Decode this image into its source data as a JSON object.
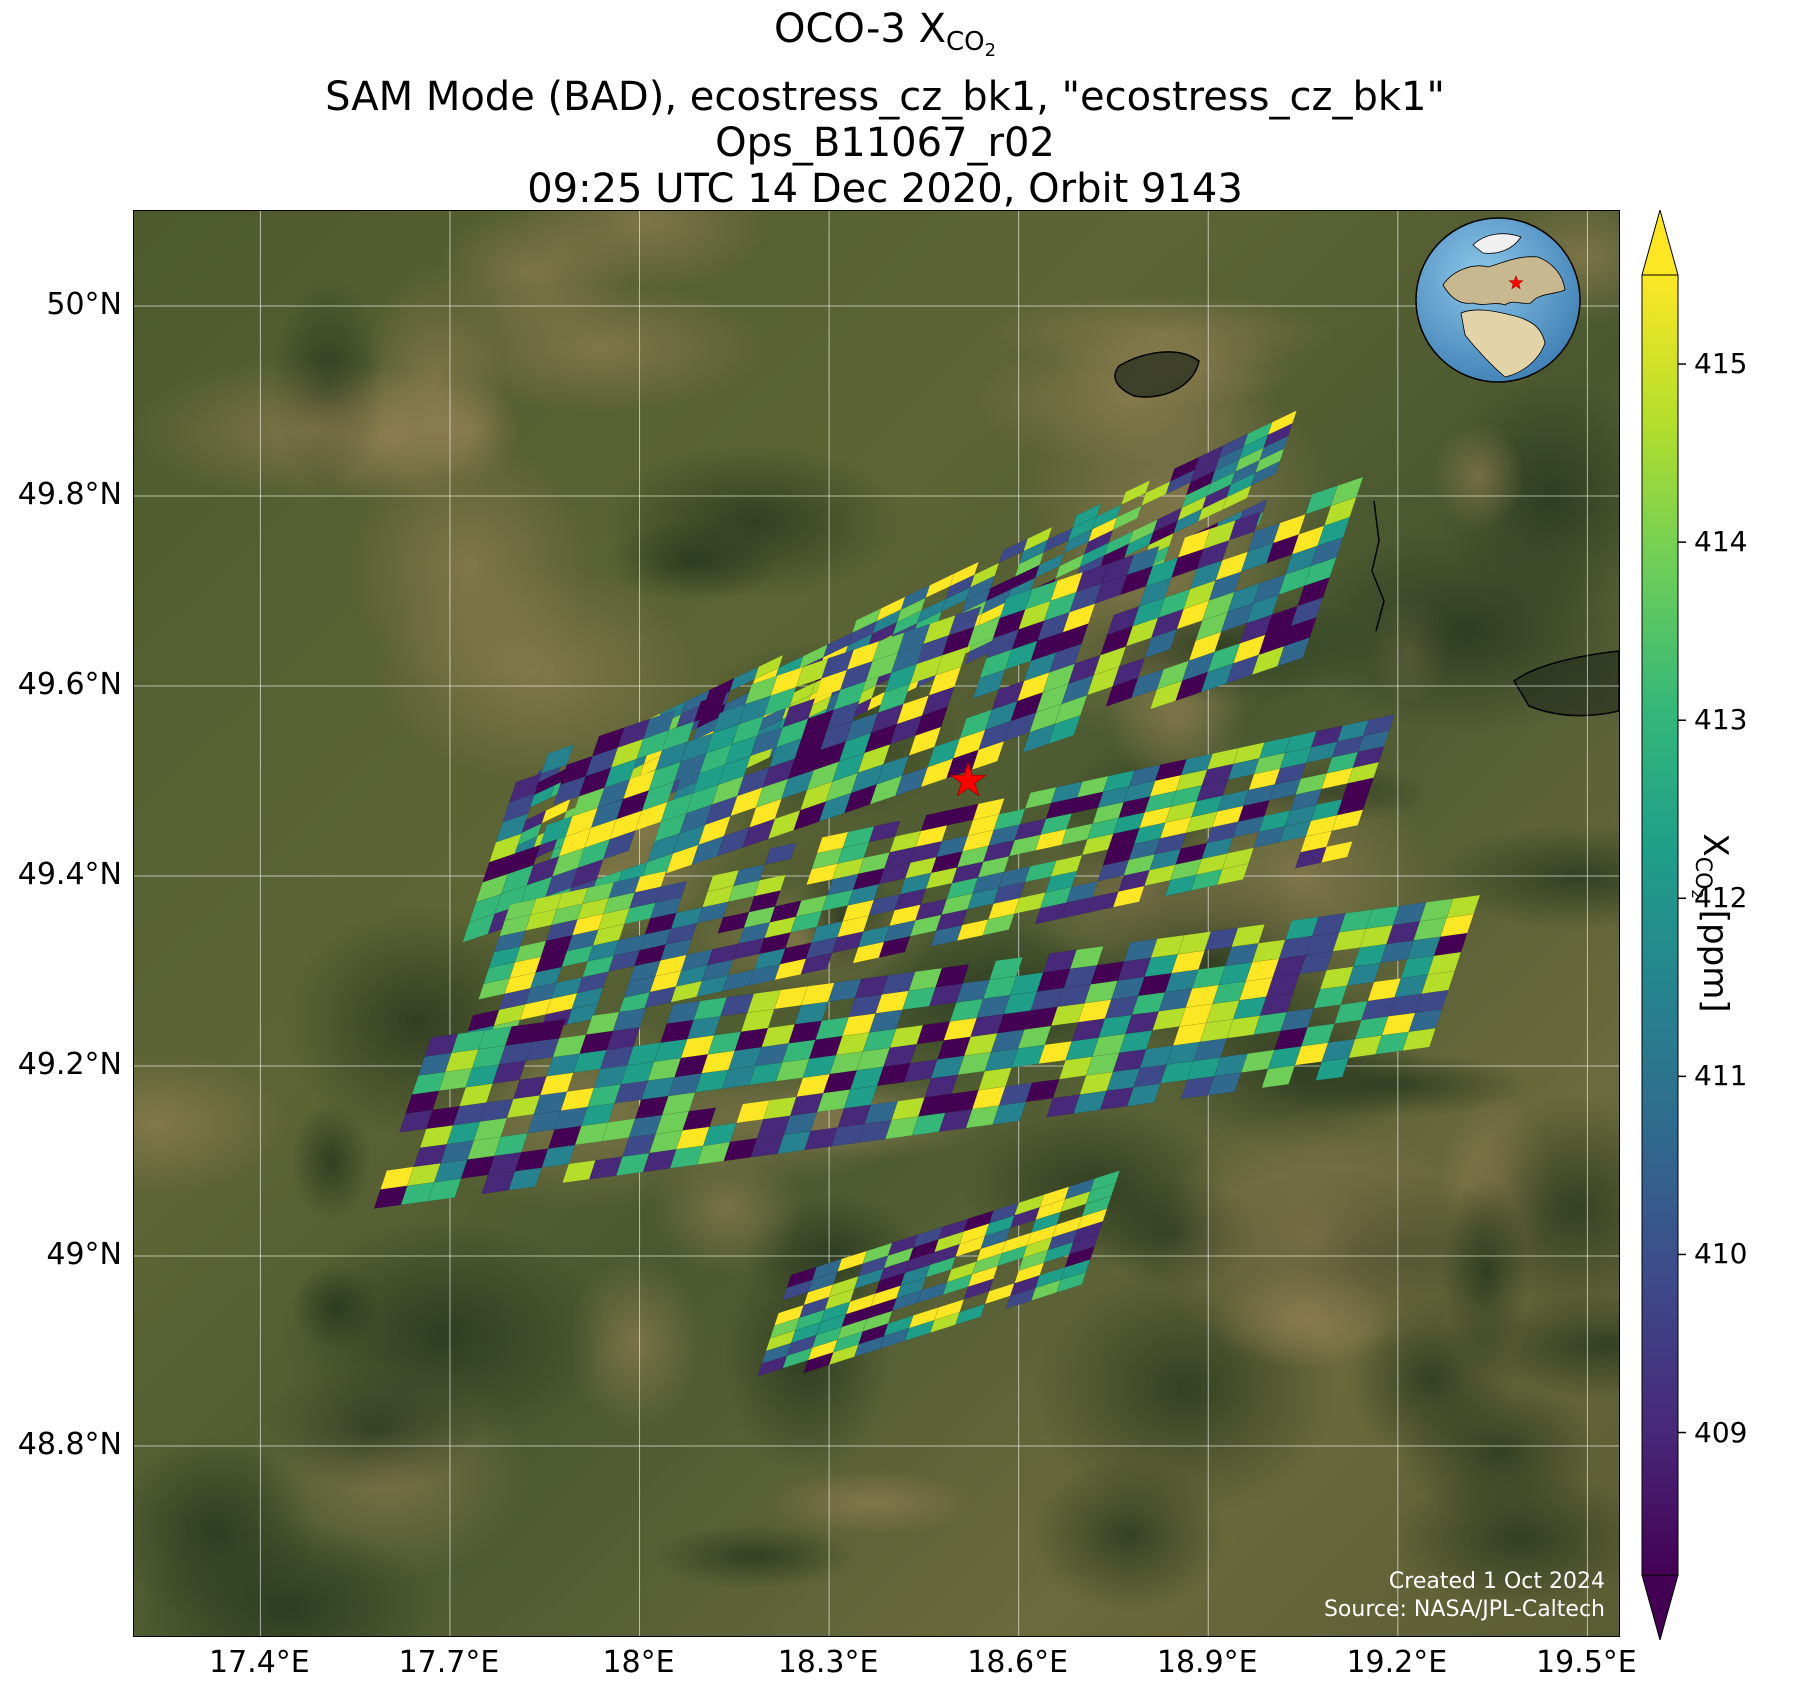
{
  "title": {
    "line1_prefix": "OCO-3 X",
    "line1_sub": "CO",
    "line1_subsub": "2",
    "line2": "SAM Mode (BAD), ecostress_cz_bk1, \"ecostress_cz_bk1\"",
    "line3": "Ops_B11067_r02",
    "line4": "09:25 UTC 14 Dec 2020, Orbit 9143"
  },
  "map": {
    "lon_range": [
      17.2,
      19.55
    ],
    "lat_range": [
      48.6,
      50.1
    ],
    "lat_ticks": [
      {
        "value": 50.0,
        "label": "50°N"
      },
      {
        "value": 49.8,
        "label": "49.8°N"
      },
      {
        "value": 49.6,
        "label": "49.6°N"
      },
      {
        "value": 49.4,
        "label": "49.4°N"
      },
      {
        "value": 49.2,
        "label": "49.2°N"
      },
      {
        "value": 49.0,
        "label": "49°N"
      },
      {
        "value": 48.8,
        "label": "48.8°N"
      }
    ],
    "lon_ticks": [
      {
        "value": 17.4,
        "label": "17.4°E"
      },
      {
        "value": 17.7,
        "label": "17.7°E"
      },
      {
        "value": 18.0,
        "label": "18°E"
      },
      {
        "value": 18.3,
        "label": "18.3°E"
      },
      {
        "value": 18.6,
        "label": "18.6°E"
      },
      {
        "value": 18.9,
        "label": "18.9°E"
      },
      {
        "value": 19.2,
        "label": "19.2°E"
      },
      {
        "value": 19.5,
        "label": "19.5°E"
      }
    ],
    "target": {
      "lon": 18.52,
      "lat": 49.5
    },
    "background": "satellite imagery",
    "gridlines": true,
    "credit_line1": "Created 1 Oct 2024",
    "credit_line2": "Source: NASA/JPL-Caltech"
  },
  "chart_data": {
    "type": "heatmap",
    "variable": "XCO2",
    "units": "ppm",
    "colormap": "viridis",
    "colorbar_range": [
      408.2,
      415.5
    ],
    "colorbar_extend": "both",
    "colorbar_ticks": [
      409,
      410,
      411,
      412,
      413,
      414,
      415
    ],
    "colorbar_label_prefix": "X",
    "colorbar_label_sub": "CO",
    "colorbar_label_subsub": "2",
    "colorbar_label_suffix": " [ppm]",
    "value_range_observed": [
      408.2,
      415.5
    ],
    "swaths": [
      {
        "name": "swath-1",
        "corner_sw": [
          17.78,
          49.39
        ],
        "corner_se": [
          18.98,
          49.77
        ],
        "corner_nw_offset": 0.12
      },
      {
        "name": "swath-2",
        "corner_sw": [
          17.72,
          49.33
        ],
        "corner_se": [
          19.05,
          49.63
        ],
        "corner_nw_offset": 0.19
      },
      {
        "name": "swath-3",
        "corner_sw": [
          17.72,
          49.22
        ],
        "corner_se": [
          19.12,
          49.42
        ],
        "corner_nw_offset": 0.15
      },
      {
        "name": "swath-4",
        "corner_sw": [
          17.58,
          49.05
        ],
        "corner_se": [
          19.24,
          49.2
        ],
        "corner_nw_offset": 0.18
      },
      {
        "name": "swath-5",
        "corner_sw": [
          18.18,
          48.86
        ],
        "corner_se": [
          18.7,
          48.97
        ],
        "corner_nw_offset": 0.12
      }
    ]
  },
  "colors": {
    "viridis": [
      "#440154",
      "#482878",
      "#3e4989",
      "#31688e",
      "#26828e",
      "#1f9e89",
      "#35b779",
      "#6ece58",
      "#b5de2b",
      "#fde725"
    ],
    "target_star": "#ff0000",
    "grid": "#ffffff"
  }
}
